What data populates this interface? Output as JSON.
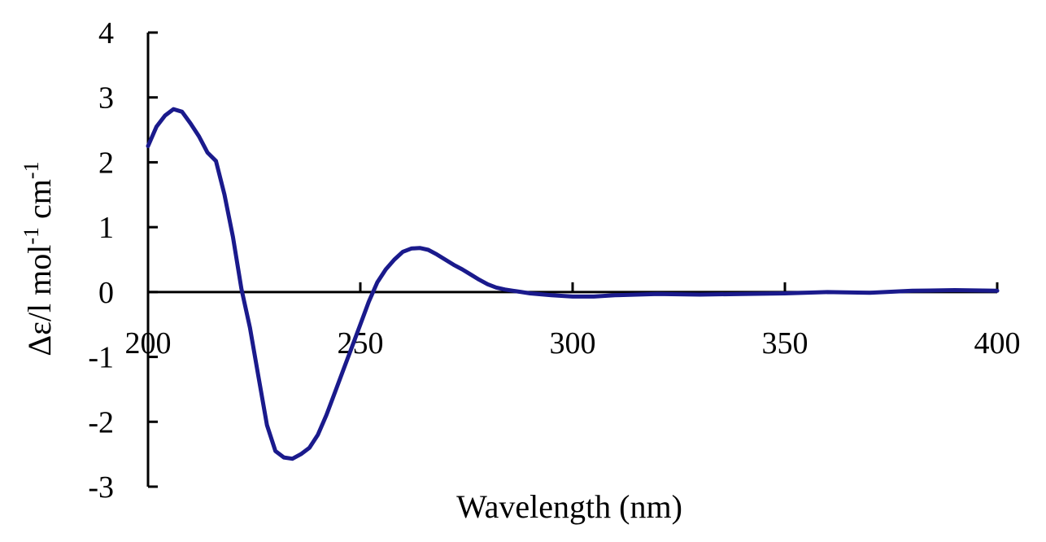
{
  "chart_data": {
    "type": "line",
    "title": "",
    "xlabel": "Wavelength (nm)",
    "ylabel": "Δε/l mol-1 cm-1",
    "ylabel_parts": {
      "a": "Δε/l mol",
      "a_sup": "-1",
      "b": " cm",
      "b_sup": "-1"
    },
    "xlim": [
      200,
      400
    ],
    "ylim": [
      -3,
      4
    ],
    "x_ticks": [
      200,
      250,
      300,
      350,
      400
    ],
    "x_tick_labels": [
      "200",
      "250",
      "300",
      "350",
      "400"
    ],
    "y_ticks": [
      4,
      3,
      2,
      1,
      0,
      -1,
      -2,
      -3
    ],
    "y_tick_labels": [
      "4",
      "3",
      "2",
      "1",
      "0",
      "-1",
      "-2",
      "-3"
    ],
    "grid": false,
    "legend": "none",
    "line_color": "#1a1a8c",
    "axis_color": "#000000",
    "series": [
      {
        "x": [
          200,
          202,
          204,
          206,
          208,
          210,
          212,
          214,
          216,
          218,
          220,
          222,
          224,
          226,
          228,
          230,
          232,
          234,
          236,
          238,
          240,
          242,
          244,
          246,
          248,
          250,
          252,
          254,
          256,
          258,
          260,
          262,
          264,
          266,
          268,
          270,
          272,
          274,
          276,
          278,
          280,
          282,
          284,
          286,
          288,
          290,
          295,
          300,
          305,
          310,
          320,
          330,
          340,
          350,
          360,
          370,
          380,
          390,
          400
        ],
        "y": [
          2.25,
          2.55,
          2.72,
          2.82,
          2.78,
          2.6,
          2.4,
          2.15,
          2.02,
          1.5,
          0.85,
          0.05,
          -0.55,
          -1.3,
          -2.05,
          -2.45,
          -2.55,
          -2.57,
          -2.5,
          -2.4,
          -2.2,
          -1.9,
          -1.55,
          -1.2,
          -0.85,
          -0.5,
          -0.15,
          0.15,
          0.35,
          0.5,
          0.62,
          0.67,
          0.68,
          0.65,
          0.58,
          0.5,
          0.42,
          0.35,
          0.27,
          0.19,
          0.12,
          0.07,
          0.04,
          0.02,
          0.0,
          -0.02,
          -0.05,
          -0.07,
          -0.07,
          -0.05,
          -0.03,
          -0.04,
          -0.03,
          -0.02,
          0.0,
          -0.01,
          0.02,
          0.03,
          0.02
        ]
      }
    ]
  }
}
